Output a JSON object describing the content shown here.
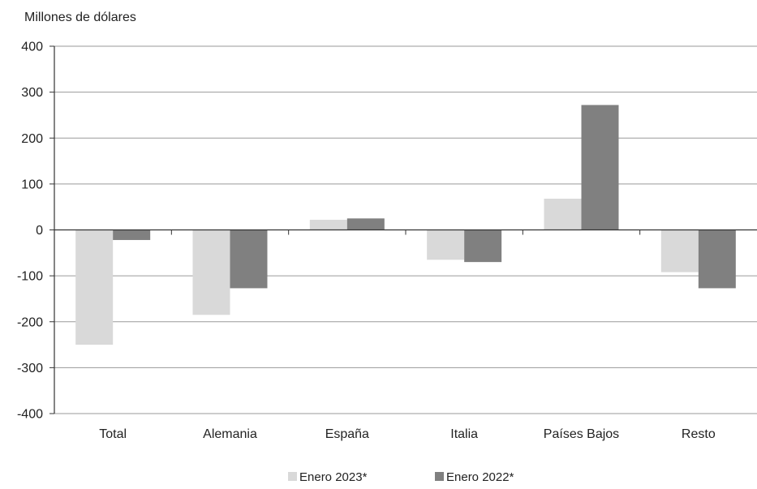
{
  "chart_data": {
    "type": "bar",
    "ylabel": "Millones de dólares",
    "categories": [
      "Total",
      "Alemania",
      "España",
      "Italia",
      "Países Bajos",
      "Resto"
    ],
    "series": [
      {
        "name": "Enero 2023*",
        "color": "#d9d9d9",
        "values": [
          -250,
          -185,
          22,
          -65,
          68,
          -92
        ]
      },
      {
        "name": "Enero 2022*",
        "color": "#808080",
        "values": [
          -22,
          -127,
          25,
          -70,
          272,
          -127
        ]
      }
    ],
    "ylim": [
      -400,
      400
    ],
    "yticks": [
      400,
      300,
      200,
      100,
      0,
      -100,
      -200,
      -300,
      -400
    ],
    "ytick_labels": [
      "400",
      "300",
      "200",
      "100",
      "0",
      "-100",
      "-200",
      "-300",
      "-400"
    ],
    "grid": true,
    "legend_position": "bottom-center"
  }
}
